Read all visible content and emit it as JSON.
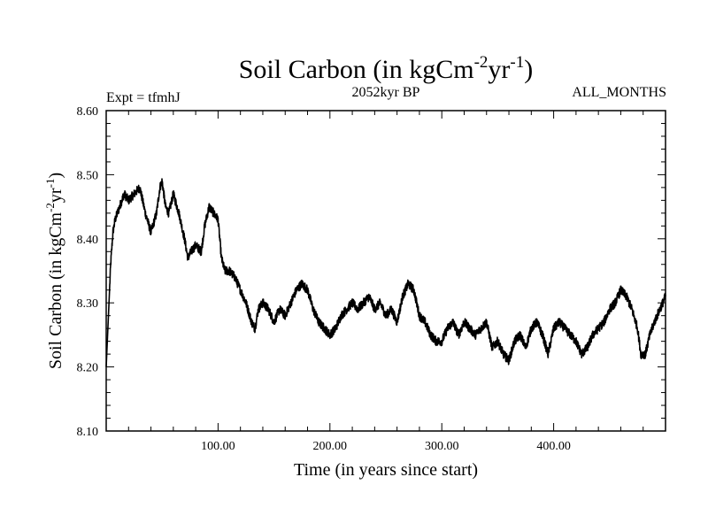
{
  "chart_data": {
    "type": "line",
    "title_main": "Soil Carbon (in kgCm",
    "title_sup1": "-2",
    "title_mid": "yr",
    "title_sup2": "-1",
    "title_end": ")",
    "subtitle_left": "Expt = tfmhJ",
    "subtitle_center": "2052kyr BP",
    "subtitle_right": "ALL_MONTHS",
    "xlabel": "Time (in years since start)",
    "ylabel_main": "Soil Carbon (in kgCm",
    "ylabel_sup1": "-2",
    "ylabel_mid": "yr",
    "ylabel_sup2": "-1",
    "ylabel_end": ")",
    "xlim": [
      0,
      500
    ],
    "ylim": [
      8.1,
      8.6
    ],
    "xticks": [
      100,
      200,
      300,
      400
    ],
    "xtick_labels": [
      "100.00",
      "200.00",
      "300.00",
      "400.00"
    ],
    "yticks": [
      8.1,
      8.2,
      8.3,
      8.4,
      8.5,
      8.6
    ],
    "ytick_labels": [
      "8.10",
      "8.20",
      "8.30",
      "8.40",
      "8.50",
      "8.60"
    ],
    "grid": false,
    "series": [
      {
        "name": "Soil Carbon",
        "x": [
          0,
          2,
          4,
          6,
          8,
          12,
          16,
          20,
          25,
          30,
          35,
          40,
          45,
          48,
          50,
          53,
          56,
          60,
          65,
          70,
          73,
          76,
          80,
          85,
          88,
          92,
          96,
          100,
          103,
          106,
          110,
          115,
          120,
          125,
          130,
          133,
          136,
          140,
          145,
          150,
          155,
          160,
          165,
          170,
          175,
          180,
          185,
          190,
          195,
          200,
          205,
          210,
          215,
          220,
          225,
          230,
          235,
          240,
          245,
          250,
          255,
          260,
          265,
          270,
          275,
          280,
          285,
          290,
          295,
          300,
          305,
          310,
          315,
          320,
          325,
          330,
          335,
          340,
          345,
          350,
          355,
          360,
          365,
          370,
          375,
          380,
          385,
          390,
          395,
          400,
          405,
          410,
          415,
          420,
          425,
          430,
          435,
          440,
          445,
          450,
          455,
          460,
          465,
          470,
          475,
          478,
          482,
          486,
          490,
          495,
          500
        ],
        "y": [
          8.2,
          8.28,
          8.36,
          8.41,
          8.43,
          8.45,
          8.47,
          8.46,
          8.47,
          8.48,
          8.44,
          8.41,
          8.44,
          8.48,
          8.49,
          8.45,
          8.44,
          8.47,
          8.44,
          8.4,
          8.37,
          8.38,
          8.39,
          8.38,
          8.42,
          8.45,
          8.44,
          8.43,
          8.37,
          8.35,
          8.35,
          8.34,
          8.32,
          8.3,
          8.27,
          8.26,
          8.29,
          8.3,
          8.29,
          8.27,
          8.29,
          8.28,
          8.3,
          8.32,
          8.33,
          8.32,
          8.29,
          8.27,
          8.26,
          8.25,
          8.26,
          8.28,
          8.29,
          8.3,
          8.29,
          8.3,
          8.31,
          8.29,
          8.3,
          8.28,
          8.29,
          8.27,
          8.31,
          8.33,
          8.32,
          8.28,
          8.27,
          8.25,
          8.24,
          8.24,
          8.26,
          8.27,
          8.25,
          8.27,
          8.26,
          8.25,
          8.26,
          8.27,
          8.23,
          8.24,
          8.22,
          8.21,
          8.24,
          8.25,
          8.23,
          8.26,
          8.27,
          8.25,
          8.22,
          8.26,
          8.27,
          8.26,
          8.25,
          8.24,
          8.22,
          8.23,
          8.25,
          8.26,
          8.27,
          8.29,
          8.3,
          8.32,
          8.31,
          8.29,
          8.26,
          8.22,
          8.22,
          8.25,
          8.27,
          8.29,
          8.31
        ]
      }
    ]
  }
}
